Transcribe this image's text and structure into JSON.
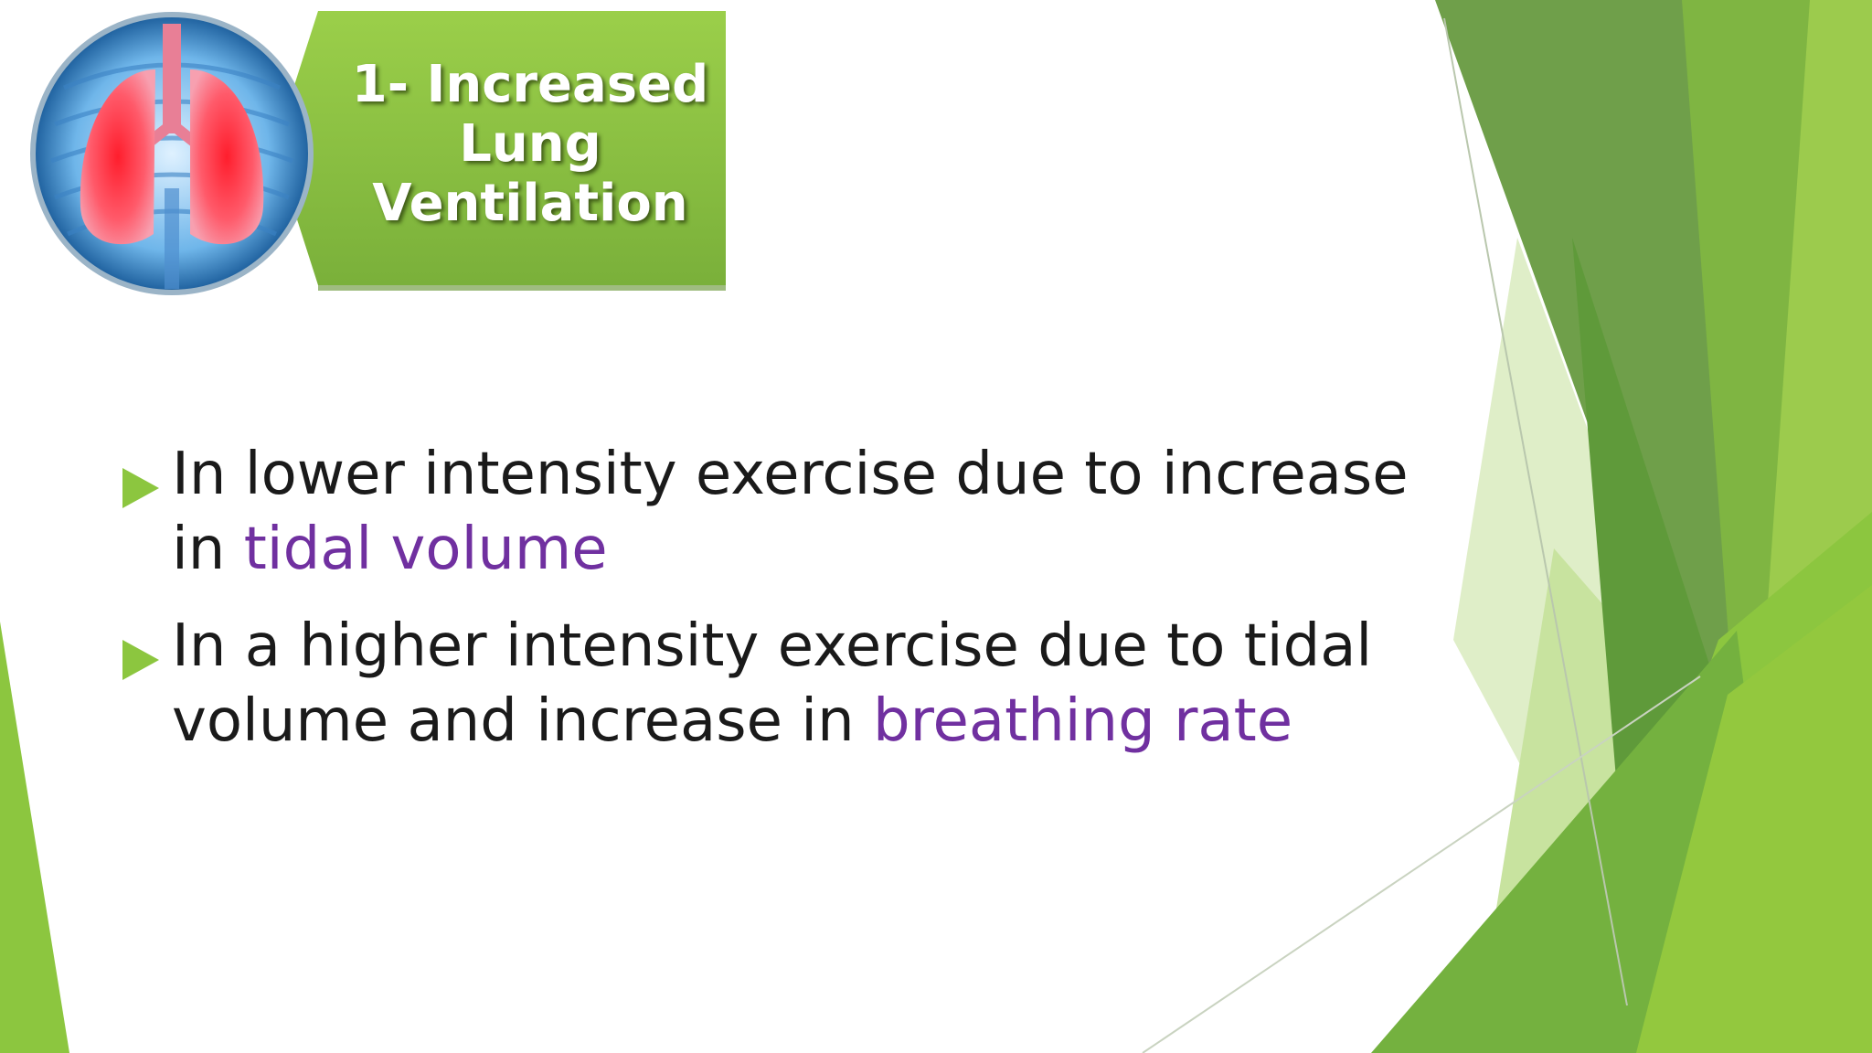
{
  "slide": {
    "title_lines": [
      "1- Increased",
      "Lung",
      "Ventilation"
    ],
    "image_icon": "lungs-illustration",
    "bullets": [
      {
        "text_before": "In lower intensity exercise due to increase in ",
        "highlight": "tidal volume"
      },
      {
        "text_before": "In a higher intensity exercise due to tidal volume and increase in ",
        "highlight": "breathing rate"
      }
    ]
  },
  "theme": {
    "accent_green": "#8cc63f",
    "dark_green": "#5f9a3a",
    "highlight_purple": "#7030a0",
    "bullet_icon": "triangle-right-icon"
  }
}
